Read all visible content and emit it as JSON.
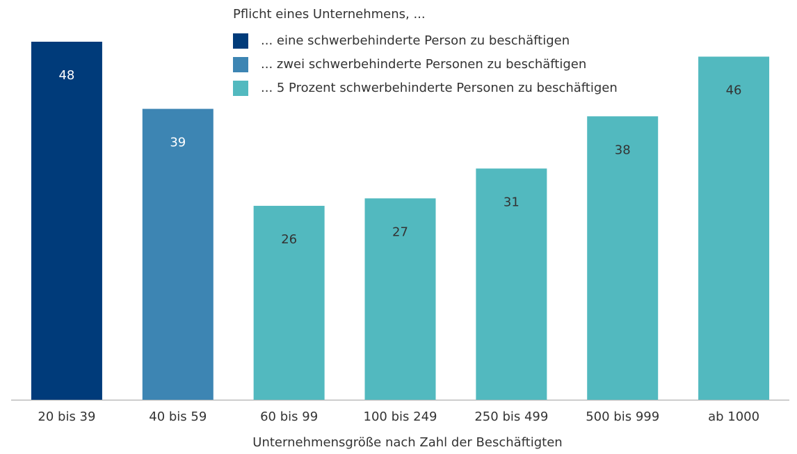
{
  "chart_data": {
    "type": "bar",
    "legend_title": "Pflicht eines Unternehmens, ...",
    "x_label": "Unternehmensgröße nach Zahl der Beschäftigten",
    "categories": [
      "20 bis 39",
      "40 bis 59",
      "60 bis 99",
      "100 bis 249",
      "250 bis 499",
      "500 bis 999",
      "ab 1000"
    ],
    "series": [
      {
        "name": "... eine schwerbehinderte Person zu beschäftigen",
        "color": "#003b7a",
        "values": [
          48,
          null,
          null,
          null,
          null,
          null,
          null
        ]
      },
      {
        "name": "... zwei schwerbehinderte Personen zu beschäftigen",
        "color": "#3d85b3",
        "values": [
          null,
          39,
          null,
          null,
          null,
          null,
          null
        ]
      },
      {
        "name": "... 5 Prozent schwerbehinderte Personen zu beschäftigen",
        "color": "#52b9bf",
        "values": [
          null,
          null,
          26,
          27,
          31,
          38,
          46
        ]
      }
    ],
    "ylim": [
      0,
      48
    ]
  }
}
